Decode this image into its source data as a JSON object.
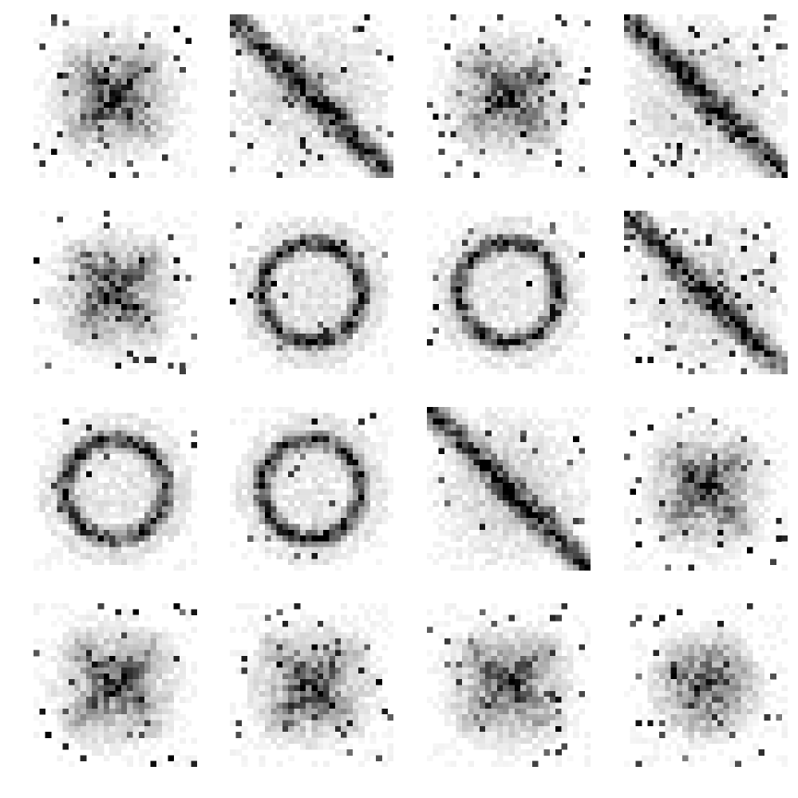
{
  "figure": {
    "rows": 4,
    "cols": 4,
    "pixel_grid": 28,
    "ink_color": "#000000",
    "background": "#ffffff"
  },
  "samples": [
    {
      "id": "sample-1",
      "shape": "x-noise",
      "noise": 0.3
    },
    {
      "id": "sample-2",
      "shape": "diagonal",
      "noise": 0.18
    },
    {
      "id": "sample-3",
      "shape": "x-noise",
      "noise": 0.22
    },
    {
      "id": "sample-4",
      "shape": "diagonal",
      "noise": 0.28
    },
    {
      "id": "sample-5",
      "shape": "x-noise",
      "noise": 0.22
    },
    {
      "id": "sample-6",
      "shape": "ring",
      "noise": 0.1
    },
    {
      "id": "sample-7",
      "shape": "ring",
      "noise": 0.07
    },
    {
      "id": "sample-8",
      "shape": "diagonal",
      "noise": 0.26
    },
    {
      "id": "sample-9",
      "shape": "ring",
      "noise": 0.09
    },
    {
      "id": "sample-10",
      "shape": "ring",
      "noise": 0.1
    },
    {
      "id": "sample-11",
      "shape": "diagonal",
      "noise": 0.14
    },
    {
      "id": "sample-12",
      "shape": "x-noise",
      "noise": 0.26
    },
    {
      "id": "sample-13",
      "shape": "x-noise",
      "noise": 0.3
    },
    {
      "id": "sample-14",
      "shape": "x-noise",
      "noise": 0.3
    },
    {
      "id": "sample-15",
      "shape": "x-noise",
      "noise": 0.28
    },
    {
      "id": "sample-16",
      "shape": "blob",
      "noise": 0.24
    }
  ]
}
